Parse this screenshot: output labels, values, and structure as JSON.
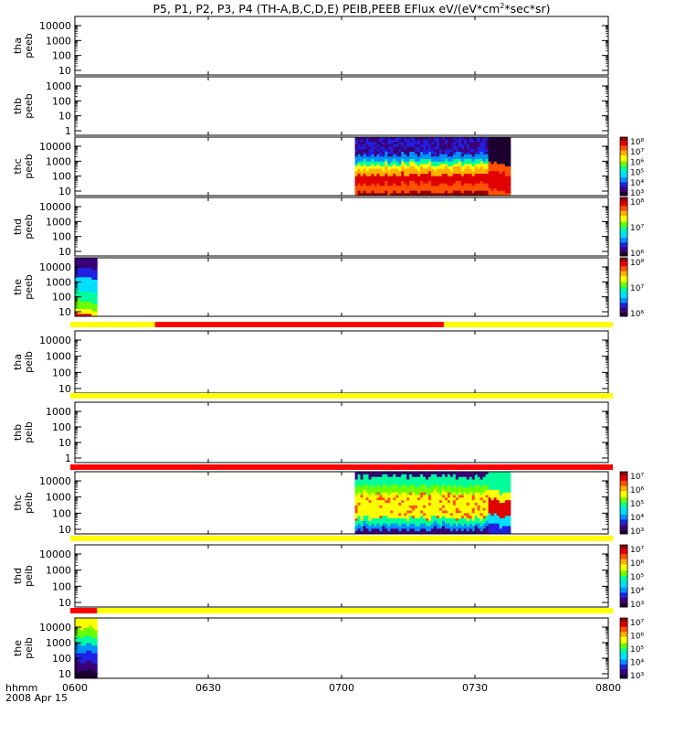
{
  "chart_data": {
    "type": "heatmap",
    "title": "P5, P1, P2, P3, P4 (TH-A,B,C,D,E) PEIB,PEEB EFlux eV/(eV*cm²*sec*sr)",
    "xlabel": "hhmm",
    "date_label": "2008 Apr 15",
    "x_range": [
      "0600",
      "0800"
    ],
    "x_ticks": [
      "0600",
      "0630",
      "0700",
      "0730",
      "0800"
    ],
    "palette": [
      "#1c0030",
      "#3a0078",
      "#2020e0",
      "#0090ff",
      "#00e0ff",
      "#00ff9a",
      "#6aff00",
      "#ffff00",
      "#ffb000",
      "#ff5000",
      "#e00000",
      "#900000"
    ],
    "status_colors": {
      "yellow": "#ffff00",
      "red": "#ff0000"
    },
    "panels": [
      {
        "probe": "tha",
        "product": "peeb",
        "y_ticks": [
          "10",
          "100",
          "1000",
          "10000"
        ],
        "data_blocks": [],
        "colorbar_labels": []
      },
      {
        "probe": "thb",
        "product": "peeb",
        "y_ticks": [
          "1",
          "10",
          "100",
          "1000"
        ],
        "data_blocks": [],
        "colorbar_labels": []
      },
      {
        "probe": "thc",
        "product": "peeb",
        "y_ticks": [
          "10",
          "100",
          "1000",
          "10000"
        ],
        "data_blocks": [
          {
            "start": "0703",
            "end": "0733",
            "profile": "electron_burst"
          },
          {
            "start": "0733",
            "end": "0738",
            "profile": "electron_burst_end"
          }
        ],
        "colorbar_labels": [
          "10³",
          "10⁴",
          "10⁵",
          "10⁶",
          "10⁷",
          "10⁸"
        ]
      },
      {
        "probe": "thd",
        "product": "peeb",
        "y_ticks": [
          "10",
          "100",
          "1000",
          "10000"
        ],
        "data_blocks": [],
        "colorbar_labels": [
          "10⁶",
          "10⁷",
          "10⁸"
        ]
      },
      {
        "probe": "the",
        "product": "peeb",
        "y_ticks": [
          "10",
          "100",
          "1000",
          "10000"
        ],
        "data_blocks": [
          {
            "start": "0600",
            "end": "0605",
            "profile": "electron_short"
          }
        ],
        "colorbar_labels": [
          "10⁶",
          "10⁷",
          "10⁸"
        ],
        "mode_bar": [
          {
            "start": "0600",
            "end": "0618",
            "color": "yellow"
          },
          {
            "start": "0618",
            "end": "0723",
            "color": "red"
          },
          {
            "start": "0723",
            "end": "0800",
            "color": "yellow"
          }
        ]
      },
      {
        "probe": "tha",
        "product": "peib",
        "y_ticks": [
          "10",
          "100",
          "1000",
          "10000"
        ],
        "data_blocks": [],
        "colorbar_labels": [],
        "mode_bar": [
          {
            "start": "0600",
            "end": "0800",
            "color": "yellow"
          }
        ]
      },
      {
        "probe": "thb",
        "product": "peib",
        "y_ticks": [
          "1",
          "10",
          "100",
          "1000"
        ],
        "data_blocks": [],
        "colorbar_labels": [],
        "mode_bar": [
          {
            "start": "0600",
            "end": "0800",
            "color": "red"
          }
        ]
      },
      {
        "probe": "thc",
        "product": "peib",
        "y_ticks": [
          "10",
          "100",
          "1000",
          "10000"
        ],
        "data_blocks": [
          {
            "start": "0703",
            "end": "0733",
            "profile": "ion_burst"
          },
          {
            "start": "0733",
            "end": "0738",
            "profile": "ion_burst_end"
          }
        ],
        "colorbar_labels": [
          "10³",
          "10⁴",
          "10⁵",
          "10⁶",
          "10⁷"
        ],
        "mode_bar": [
          {
            "start": "0600",
            "end": "0800",
            "color": "yellow"
          }
        ]
      },
      {
        "probe": "thd",
        "product": "peib",
        "y_ticks": [
          "10",
          "100",
          "1000",
          "10000"
        ],
        "data_blocks": [],
        "colorbar_labels": [
          "10³",
          "10⁴",
          "10⁵",
          "10⁶",
          "10⁷"
        ],
        "mode_bar": [
          {
            "start": "0600",
            "end": "0605",
            "color": "red"
          },
          {
            "start": "0605",
            "end": "0800",
            "color": "yellow"
          }
        ]
      },
      {
        "probe": "the",
        "product": "peib",
        "y_ticks": [
          "10",
          "100",
          "1000",
          "10000"
        ],
        "data_blocks": [
          {
            "start": "0600",
            "end": "0605",
            "profile": "ion_short"
          }
        ],
        "colorbar_labels": [
          "10³",
          "10⁴",
          "10⁵",
          "10⁶",
          "10⁷"
        ]
      }
    ]
  }
}
